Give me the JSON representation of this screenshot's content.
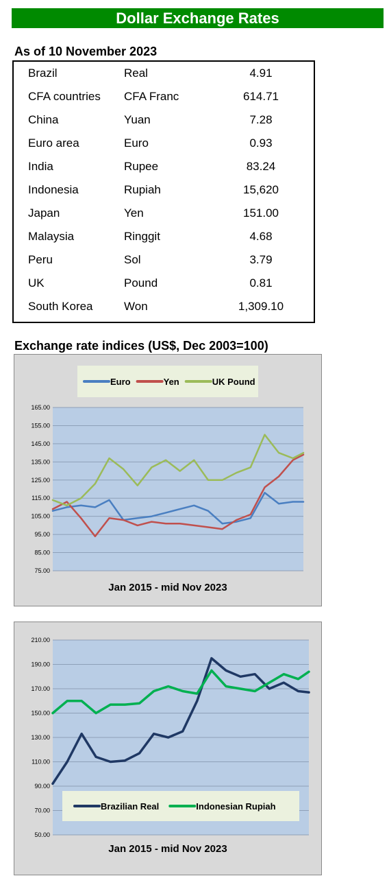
{
  "banner": "Dollar Exchange Rates",
  "as_of": "As of 10 November 2023",
  "rates": [
    {
      "country": "Brazil",
      "currency": "Real",
      "value": "4.91"
    },
    {
      "country": "CFA countries",
      "currency": "CFA Franc",
      "value": "614.71"
    },
    {
      "country": "China",
      "currency": "Yuan",
      "value": "7.28"
    },
    {
      "country": "Euro area",
      "currency": "Euro",
      "value": "0.93"
    },
    {
      "country": "India",
      "currency": "Rupee",
      "value": "83.24"
    },
    {
      "country": "Indonesia",
      "currency": "Rupiah",
      "value": "15,620"
    },
    {
      "country": "Japan",
      "currency": "Yen",
      "value": "151.00"
    },
    {
      "country": "Malaysia",
      "currency": "Ringgit",
      "value": "4.68"
    },
    {
      "country": "Peru",
      "currency": "Sol",
      "value": "3.79"
    },
    {
      "country": "UK",
      "currency": "Pound",
      "value": "0.81"
    },
    {
      "country": "South Korea",
      "currency": "Won",
      "value": "1,309.10"
    }
  ],
  "indices_title": "Exchange rate indices (US$, Dec 2003=100)",
  "chart_data": [
    {
      "type": "line",
      "xlabel": "Jan 2015 - mid Nov 2023",
      "ylim": [
        75,
        165
      ],
      "yticks": [
        "75.00",
        "85.00",
        "95.00",
        "105.00",
        "115.00",
        "125.00",
        "135.00",
        "145.00",
        "155.00",
        "165.00"
      ],
      "grid": true,
      "legend": "top",
      "x": [
        2015.0,
        2015.5,
        2016.0,
        2016.5,
        2017.0,
        2017.5,
        2018.0,
        2018.5,
        2019.0,
        2019.5,
        2020.0,
        2020.5,
        2021.0,
        2021.5,
        2022.0,
        2022.5,
        2023.0,
        2023.5,
        2023.87
      ],
      "series": [
        {
          "name": "Euro",
          "color": "#4a7fc1",
          "values": [
            108,
            110,
            111,
            110,
            114,
            103,
            104,
            105,
            107,
            109,
            111,
            108,
            101,
            102,
            104,
            118,
            112,
            113,
            113
          ]
        },
        {
          "name": "Yen",
          "color": "#c0504d",
          "values": [
            109,
            113,
            104,
            94,
            104,
            103,
            100,
            102,
            101,
            101,
            100,
            99,
            98,
            103,
            106,
            121,
            127,
            136,
            139
          ]
        },
        {
          "name": "UK Pound",
          "color": "#9bbb59",
          "values": [
            114,
            111,
            115,
            123,
            137,
            131,
            122,
            132,
            136,
            130,
            136,
            125,
            125,
            129,
            132,
            150,
            140,
            137,
            140
          ]
        }
      ]
    },
    {
      "type": "line",
      "xlabel": "Jan 2015 - mid Nov 2023",
      "ylim": [
        50,
        210
      ],
      "yticks": [
        "50.00",
        "70.00",
        "90.00",
        "110.00",
        "130.00",
        "150.00",
        "170.00",
        "190.00",
        "210.00"
      ],
      "grid": true,
      "legend": "bottom",
      "x": [
        2015.0,
        2015.5,
        2016.0,
        2016.5,
        2017.0,
        2017.5,
        2018.0,
        2018.5,
        2019.0,
        2019.5,
        2020.0,
        2020.5,
        2021.0,
        2021.5,
        2022.0,
        2022.5,
        2023.0,
        2023.5,
        2023.87
      ],
      "series": [
        {
          "name": "Brazilian Real",
          "color": "#1f3864",
          "values": [
            92,
            110,
            133,
            114,
            110,
            111,
            117,
            133,
            130,
            135,
            160,
            195,
            185,
            180,
            182,
            170,
            175,
            168,
            167
          ]
        },
        {
          "name": "Indonesian Rupiah",
          "color": "#00b050",
          "values": [
            150,
            160,
            160,
            150,
            157,
            157,
            158,
            168,
            172,
            168,
            166,
            185,
            172,
            170,
            168,
            175,
            182,
            178,
            184
          ]
        }
      ]
    }
  ]
}
